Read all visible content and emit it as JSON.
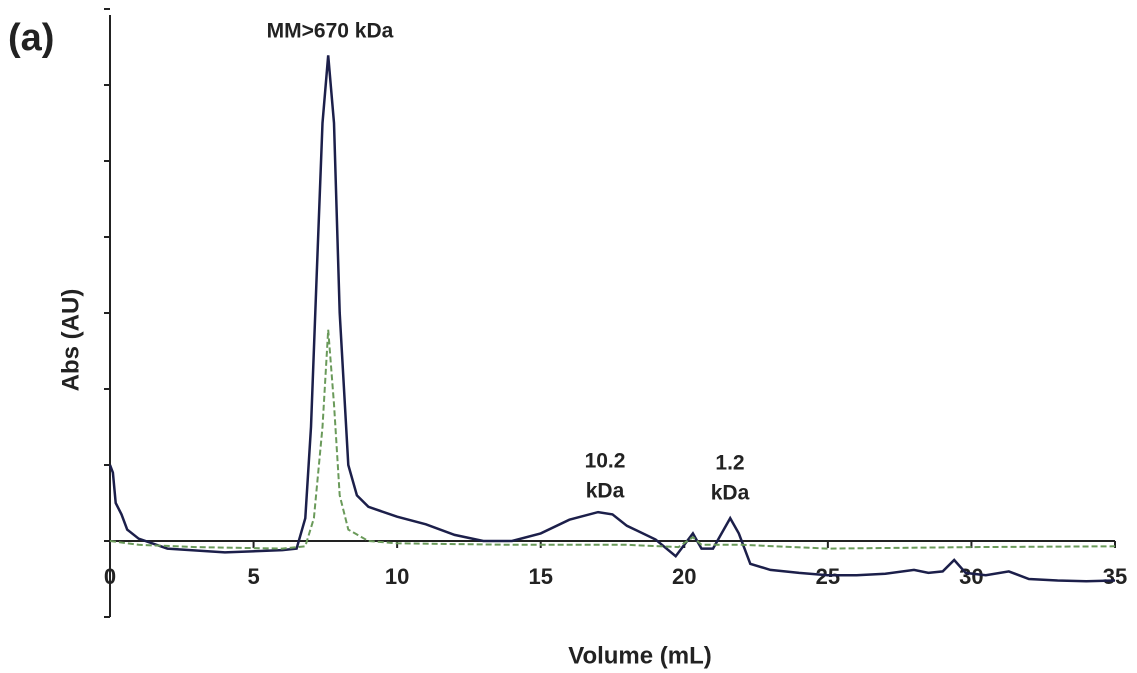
{
  "chart_data": {
    "type": "line",
    "panel_label": "(a)",
    "xlabel": "Volume  (mL)",
    "ylabel": "Abs (AU)",
    "xlim": [
      0,
      35
    ],
    "xticks": [
      0,
      5,
      10,
      15,
      20,
      25,
      30,
      35
    ],
    "ylim": [
      -1,
      7
    ],
    "yticks": [
      -1,
      0,
      1,
      2,
      3,
      4,
      5,
      6,
      7
    ],
    "annotations": [
      [
        "MM>670 kDa"
      ],
      [
        "10.2",
        "kDa"
      ],
      [
        "1.2",
        "kDa"
      ]
    ],
    "series": [
      {
        "color": "#1c1f4a",
        "dashed": false,
        "x": [
          0,
          0.1,
          0.2,
          0.4,
          0.6,
          1,
          2,
          4,
          6,
          6.5,
          6.8,
          7,
          7.2,
          7.4,
          7.6,
          7.8,
          8,
          8.3,
          8.6,
          9,
          10,
          11,
          12,
          13,
          14,
          15,
          16,
          17,
          17.5,
          18,
          19,
          19.7,
          20,
          20.3,
          20.6,
          21,
          21.3,
          21.6,
          21.9,
          22.3,
          23,
          24,
          25,
          26,
          27,
          28,
          28.5,
          29,
          29.4,
          29.8,
          30.5,
          31.3,
          32,
          33,
          34,
          35
        ],
        "values": [
          1.0,
          0.9,
          0.5,
          0.35,
          0.15,
          0.03,
          -0.1,
          -0.15,
          -0.12,
          -0.1,
          0.3,
          1.5,
          3.5,
          5.5,
          6.39,
          5.5,
          3.0,
          1.0,
          0.6,
          0.45,
          0.32,
          0.22,
          0.08,
          0.0,
          0.0,
          0.1,
          0.28,
          0.38,
          0.35,
          0.2,
          0.02,
          -0.2,
          -0.05,
          0.1,
          -0.1,
          -0.1,
          0.1,
          0.3,
          0.1,
          -0.3,
          -0.38,
          -0.42,
          -0.45,
          -0.45,
          -0.43,
          -0.38,
          -0.42,
          -0.4,
          -0.25,
          -0.42,
          -0.45,
          -0.4,
          -0.5,
          -0.52,
          -0.53,
          -0.52
        ]
      },
      {
        "color": "#6a9a5a",
        "dashed": true,
        "x": [
          0,
          1,
          3,
          6,
          6.8,
          7.1,
          7.4,
          7.6,
          7.8,
          8,
          8.3,
          9,
          10,
          14,
          18,
          19.8,
          20.3,
          20.6,
          22,
          25,
          30,
          35
        ],
        "values": [
          0.0,
          -0.05,
          -0.08,
          -0.1,
          -0.07,
          0.3,
          1.5,
          2.78,
          1.8,
          0.6,
          0.15,
          0.0,
          -0.03,
          -0.05,
          -0.05,
          -0.08,
          0.05,
          -0.05,
          -0.05,
          -0.1,
          -0.08,
          -0.07
        ]
      }
    ]
  }
}
